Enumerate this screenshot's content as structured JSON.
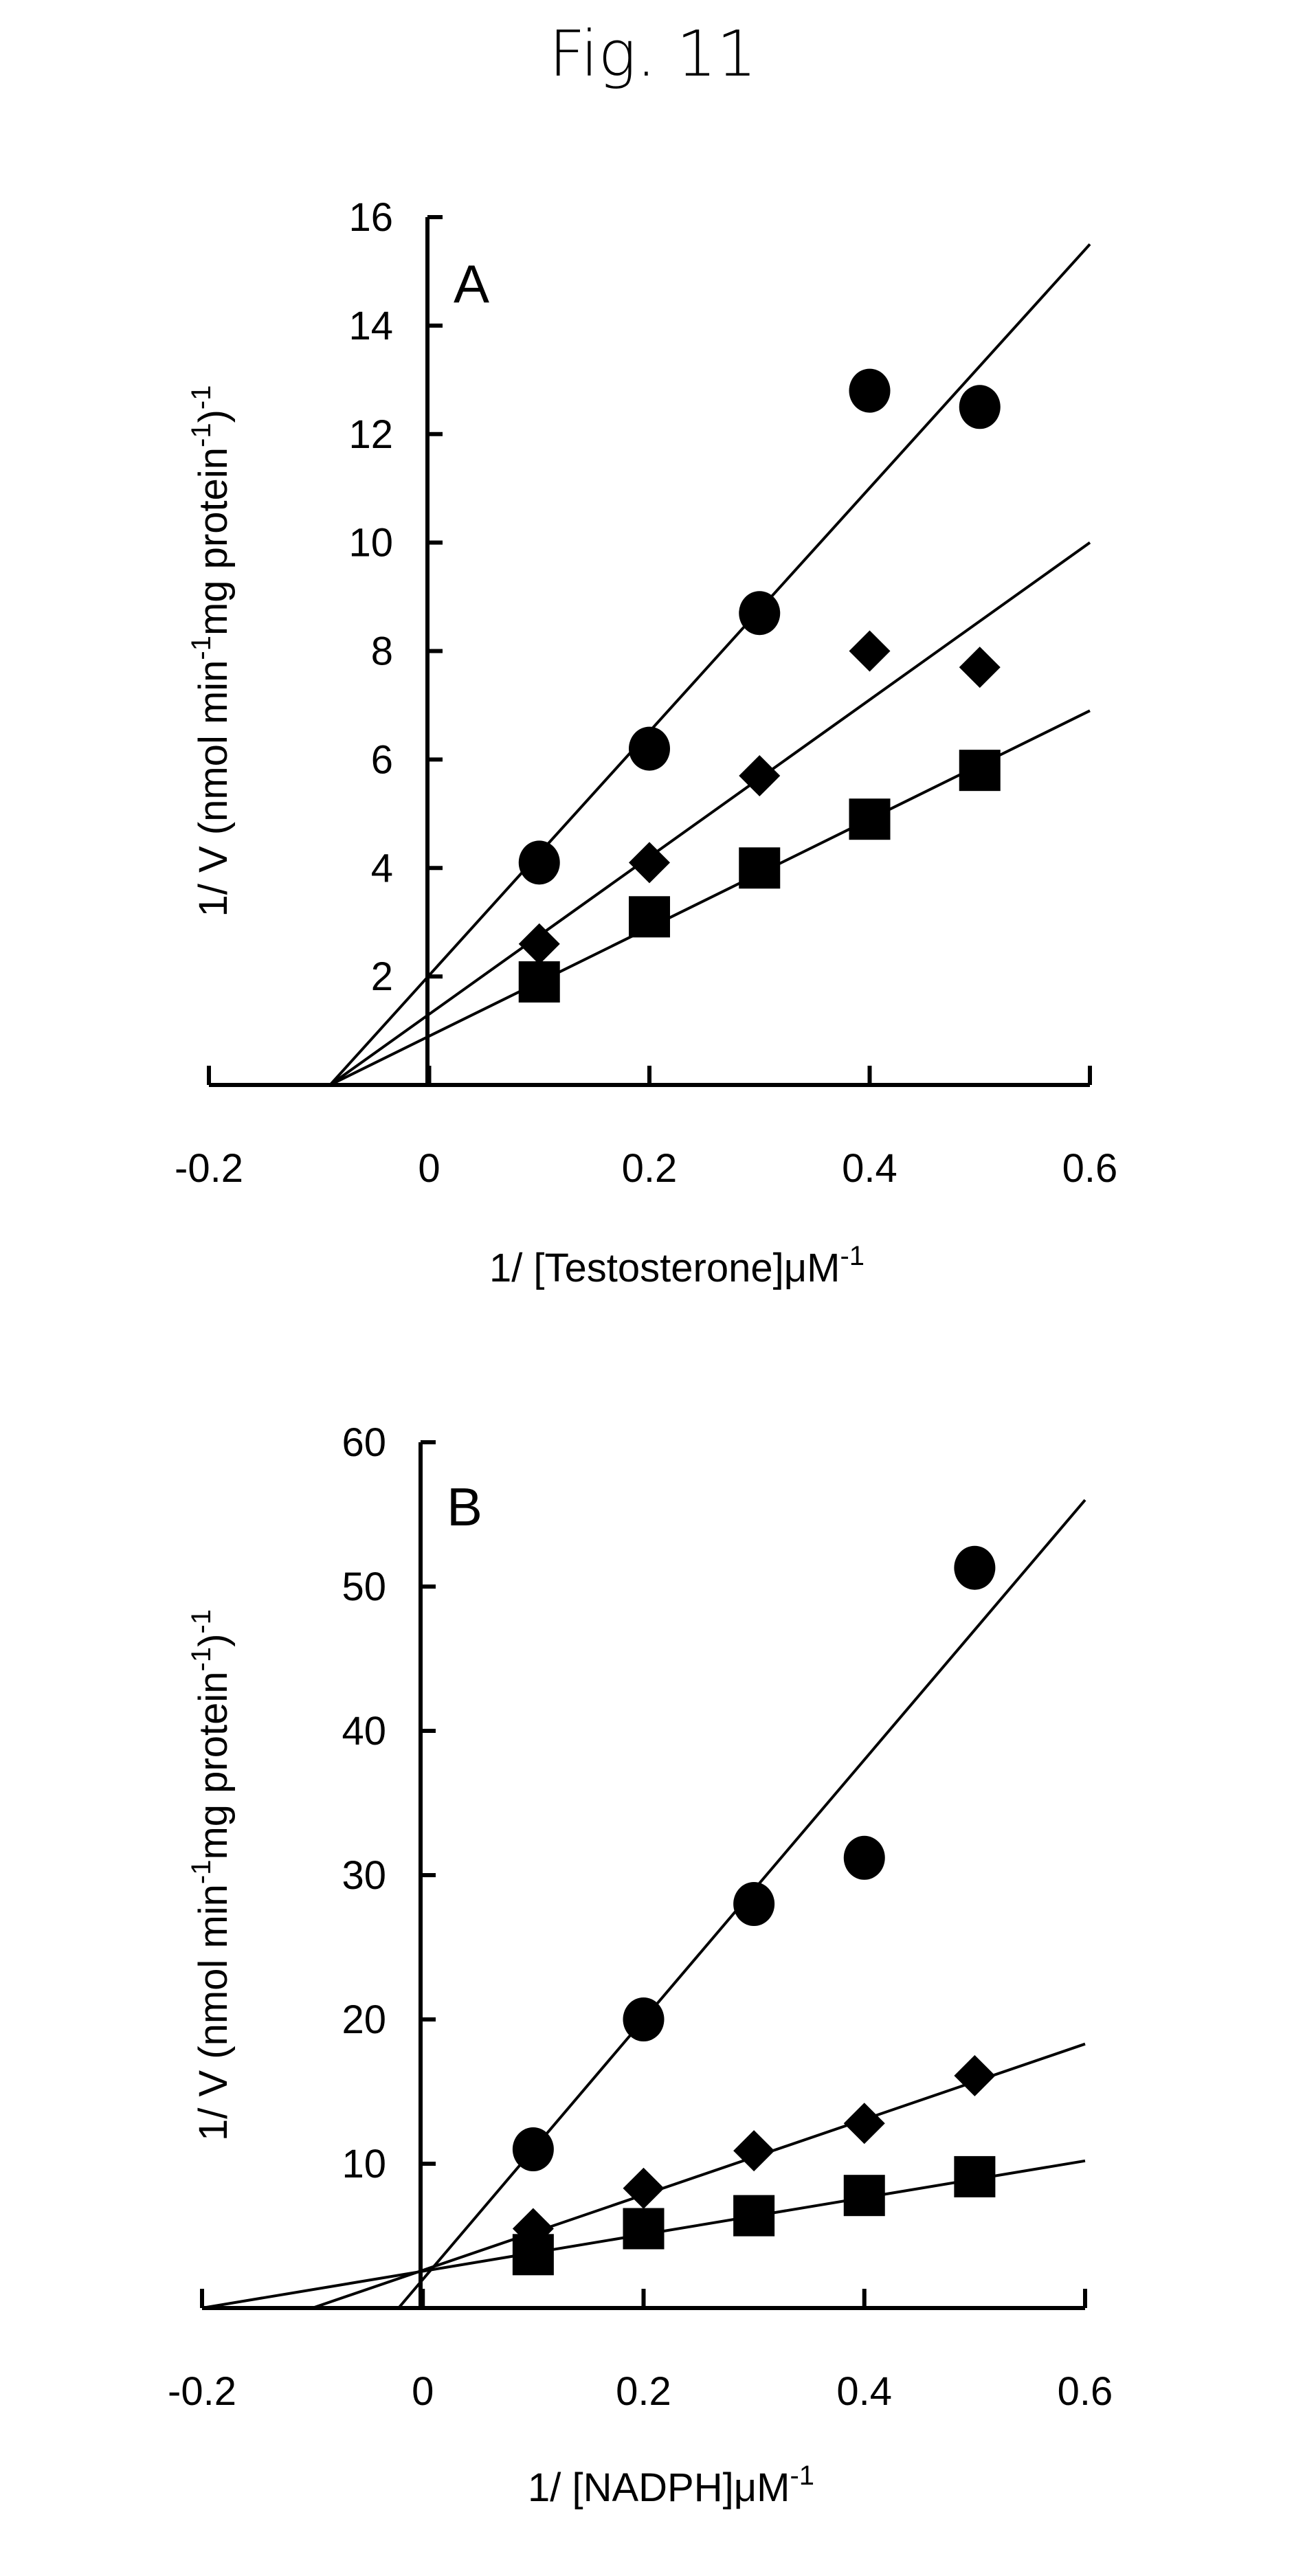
{
  "figure_title": "Fig. 11",
  "chart_data": [
    {
      "type": "scatter",
      "panel": "A",
      "xlabel": "1/ [Testosterone] μM⁻¹",
      "xlabel_main": "1/ [Testosterone]μM",
      "xlabel_sup": "-1",
      "ylabel": "1/ V (nmol min⁻¹ mg protein⁻¹)⁻¹",
      "ylabel_parts": [
        "1/ V (nmol min",
        "-1",
        "mg protein",
        "-1",
        ")",
        "-1"
      ],
      "xlim": [
        -0.2,
        0.6
      ],
      "ylim": [
        0,
        16
      ],
      "x_ticks": [
        -0.2,
        0,
        0.2,
        0.4,
        0.6
      ],
      "x_tick_labels": [
        "-0.2",
        "0",
        "0.2",
        "0.4",
        "0.6"
      ],
      "y_ticks": [
        2,
        4,
        6,
        8,
        10,
        12,
        14,
        16
      ],
      "y_tick_labels": [
        "2",
        "4",
        "6",
        "8",
        "10",
        "12",
        "14",
        "16"
      ],
      "grid": false,
      "series": [
        {
          "name": "circles",
          "marker": "circle",
          "x": [
            0.1,
            0.2,
            0.3,
            0.4,
            0.5
          ],
          "y": [
            4.1,
            6.2,
            8.7,
            12.8,
            12.5
          ],
          "fit": {
            "x": [
              -0.09,
              0.6
            ],
            "y": [
              0,
              15.5
            ]
          }
        },
        {
          "name": "diamonds",
          "marker": "diamond",
          "x": [
            0.1,
            0.2,
            0.3,
            0.4,
            0.5
          ],
          "y": [
            2.6,
            4.1,
            5.7,
            8.0,
            7.7
          ],
          "fit": {
            "x": [
              -0.09,
              0.6
            ],
            "y": [
              0,
              10.0
            ]
          }
        },
        {
          "name": "squares",
          "marker": "square",
          "x": [
            0.1,
            0.2,
            0.3,
            0.4,
            0.5
          ],
          "y": [
            1.9,
            3.1,
            4.0,
            4.9,
            5.8
          ],
          "fit": {
            "x": [
              -0.09,
              0.6
            ],
            "y": [
              0,
              6.9
            ]
          }
        }
      ]
    },
    {
      "type": "scatter",
      "panel": "B",
      "xlabel": "1/ [NADPH]μM ⁻¹",
      "xlabel_main": "1/ [NADPH]μM",
      "xlabel_sup": "-1",
      "ylabel": "1/ V (nmol min⁻¹ mg protein⁻¹)⁻¹",
      "ylabel_parts": [
        "1/ V (nmol min",
        "-1",
        "mg protein",
        "-1",
        ")",
        "-1"
      ],
      "xlim": [
        -0.2,
        0.6
      ],
      "ylim": [
        0,
        60
      ],
      "x_ticks": [
        -0.2,
        0,
        0.2,
        0.4,
        0.6
      ],
      "x_tick_labels": [
        "-0.2",
        "0",
        "0.2",
        "0.4",
        "0.6"
      ],
      "y_ticks": [
        10,
        20,
        30,
        40,
        50,
        60
      ],
      "y_tick_labels": [
        "10",
        "20",
        "30",
        "40",
        "50",
        "60"
      ],
      "grid": false,
      "series": [
        {
          "name": "circles",
          "marker": "circle",
          "x": [
            0.1,
            0.2,
            0.3,
            0.4,
            0.5
          ],
          "y": [
            11.0,
            20.0,
            28.0,
            31.2,
            51.3
          ],
          "fit": {
            "x": [
              -0.022,
              0.6
            ],
            "y": [
              0,
              56.0
            ]
          }
        },
        {
          "name": "diamonds",
          "marker": "diamond",
          "x": [
            0.1,
            0.2,
            0.3,
            0.4,
            0.5
          ],
          "y": [
            5.5,
            8.3,
            10.9,
            12.8,
            16.1
          ],
          "fit": {
            "x": [
              -0.1,
              0.6
            ],
            "y": [
              0,
              18.3
            ]
          }
        },
        {
          "name": "squares",
          "marker": "square",
          "x": [
            0.1,
            0.2,
            0.3,
            0.4,
            0.5
          ],
          "y": [
            3.7,
            5.5,
            6.4,
            7.8,
            9.1
          ],
          "fit": {
            "x": [
              -0.2,
              0.6
            ],
            "y": [
              0,
              10.2
            ]
          }
        }
      ]
    }
  ]
}
